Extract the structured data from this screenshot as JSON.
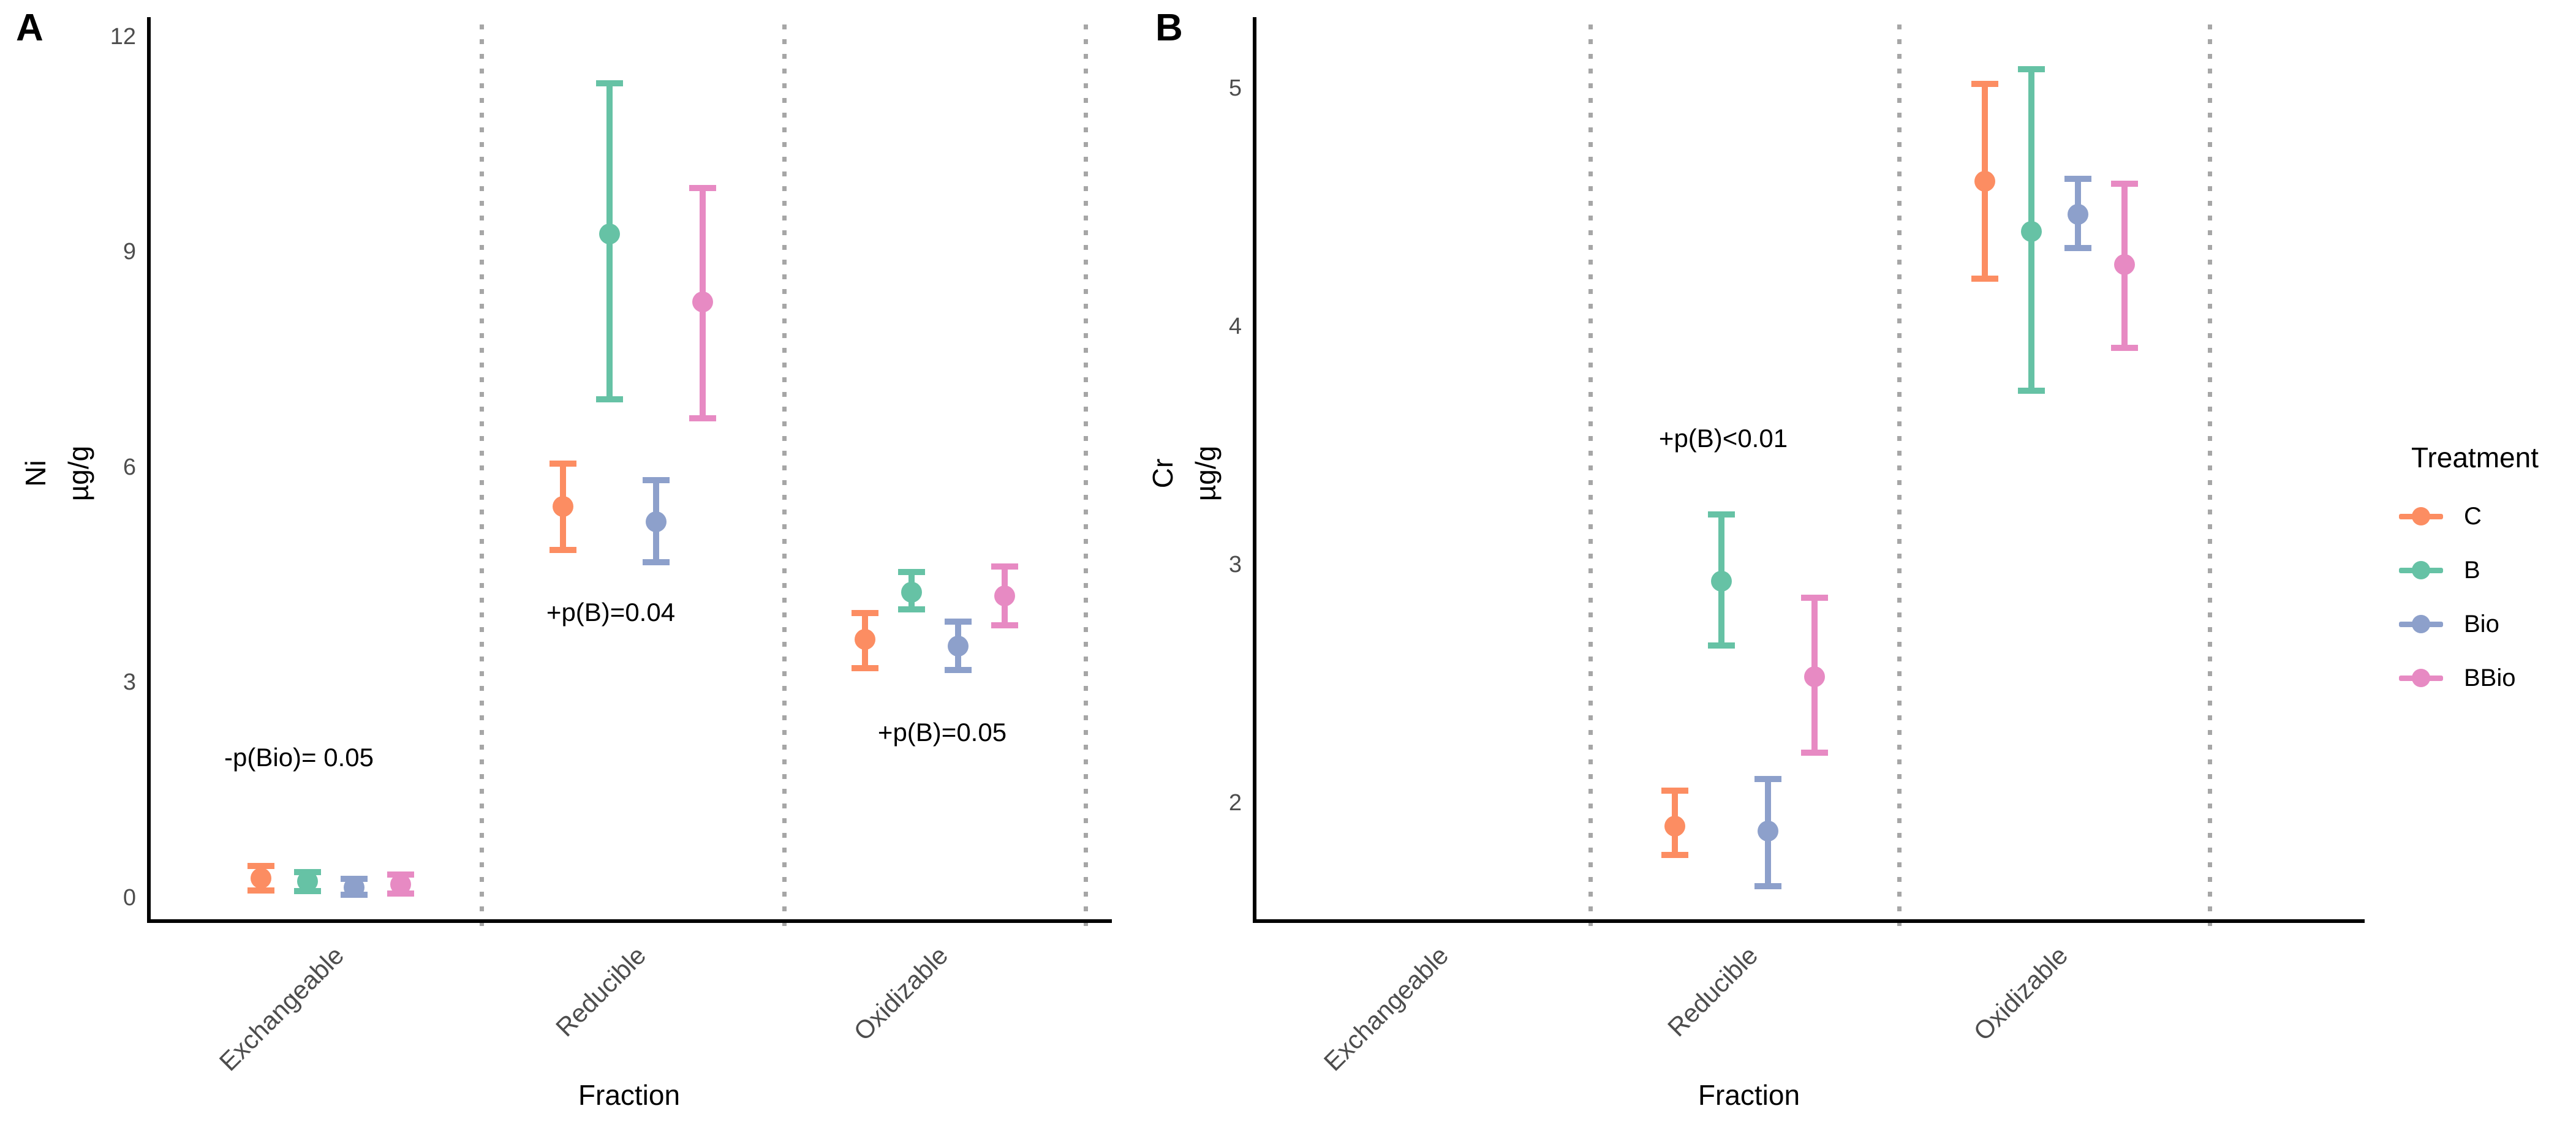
{
  "chart_data": [
    {
      "panel_label": "A",
      "type": "pointrange",
      "ylabel": "Ni",
      "ylabel_unit": "µg/g",
      "xlabel": "Fraction",
      "categories": [
        "Exchangeable",
        "Reducible",
        "Oxidizable"
      ],
      "yticks": [
        0,
        3,
        6,
        9,
        12
      ],
      "ylim": [
        -0.3,
        12.34
      ],
      "grid": "dotted-vertical-separators",
      "legend_position": "right-of-figure",
      "series": [
        {
          "name": "C",
          "color": "#FC8D62",
          "points": [
            {
              "category": "Exchangeable",
              "mean": 0.27,
              "lower": 0.1,
              "upper": 0.44
            },
            {
              "category": "Reducible",
              "mean": 5.45,
              "lower": 4.85,
              "upper": 6.05
            },
            {
              "category": "Oxidizable",
              "mean": 3.6,
              "lower": 3.2,
              "upper": 3.97
            }
          ]
        },
        {
          "name": "B",
          "color": "#66C2A5",
          "points": [
            {
              "category": "Exchangeable",
              "mean": 0.23,
              "lower": 0.09,
              "upper": 0.36
            },
            {
              "category": "Reducible",
              "mean": 9.25,
              "lower": 6.95,
              "upper": 11.35
            },
            {
              "category": "Oxidizable",
              "mean": 4.26,
              "lower": 4.02,
              "upper": 4.54
            }
          ]
        },
        {
          "name": "Bio",
          "color": "#8DA0CB",
          "points": [
            {
              "category": "Exchangeable",
              "mean": 0.14,
              "lower": 0.04,
              "upper": 0.26
            },
            {
              "category": "Reducible",
              "mean": 5.24,
              "lower": 4.68,
              "upper": 5.82
            },
            {
              "category": "Oxidizable",
              "mean": 3.51,
              "lower": 3.17,
              "upper": 3.85
            }
          ]
        },
        {
          "name": "BBio",
          "color": "#E78AC3",
          "points": [
            {
              "category": "Exchangeable",
              "mean": 0.19,
              "lower": 0.06,
              "upper": 0.32
            },
            {
              "category": "Reducible",
              "mean": 8.3,
              "lower": 6.68,
              "upper": 9.89
            },
            {
              "category": "Oxidizable",
              "mean": 4.21,
              "lower": 3.8,
              "upper": 4.62
            }
          ]
        }
      ],
      "annotations": [
        {
          "text": "-p(Bio)= 0.05",
          "category_index": 0,
          "dx": -52,
          "y": 1.95
        },
        {
          "text": "+p(B)=0.04",
          "category_index": 1,
          "dx": -36,
          "y": 3.98
        },
        {
          "text": "+p(B)=0.05",
          "category_index": 2,
          "dx": 12,
          "y": 2.3
        }
      ]
    },
    {
      "panel_label": "B",
      "type": "pointrange",
      "ylabel": "Cr",
      "ylabel_unit": "µg/g",
      "xlabel": "Fraction",
      "categories": [
        "Exchangeable",
        "Reducible",
        "Oxidizable"
      ],
      "yticks": [
        2,
        3,
        4,
        5
      ],
      "ylim": [
        1.51,
        5.32
      ],
      "grid": "dotted-vertical-separators",
      "legend_position": "right-of-figure",
      "series": [
        {
          "name": "C",
          "color": "#FC8D62",
          "points": [
            {
              "category": "Reducible",
              "mean": 1.9,
              "lower": 1.78,
              "upper": 2.05
            },
            {
              "category": "Oxidizable",
              "mean": 4.61,
              "lower": 4.2,
              "upper": 5.02
            }
          ]
        },
        {
          "name": "B",
          "color": "#66C2A5",
          "points": [
            {
              "category": "Reducible",
              "mean": 2.93,
              "lower": 2.66,
              "upper": 3.21
            },
            {
              "category": "Oxidizable",
              "mean": 4.4,
              "lower": 3.73,
              "upper": 5.08
            }
          ]
        },
        {
          "name": "Bio",
          "color": "#8DA0CB",
          "points": [
            {
              "category": "Reducible",
              "mean": 1.88,
              "lower": 1.65,
              "upper": 2.1
            },
            {
              "category": "Oxidizable",
              "mean": 4.47,
              "lower": 4.33,
              "upper": 4.62
            }
          ]
        },
        {
          "name": "BBio",
          "color": "#E78AC3",
          "points": [
            {
              "category": "Reducible",
              "mean": 2.53,
              "lower": 2.21,
              "upper": 2.86
            },
            {
              "category": "Oxidizable",
              "mean": 4.26,
              "lower": 3.91,
              "upper": 4.6
            }
          ]
        }
      ],
      "annotations": [
        {
          "text": "+p(B)<0.01",
          "category_index": 1,
          "dx": -35,
          "y": 3.53
        }
      ]
    }
  ],
  "legend": {
    "title": "Treatment",
    "items": [
      {
        "label": "C",
        "color": "#FC8D62"
      },
      {
        "label": "B",
        "color": "#66C2A5"
      },
      {
        "label": "Bio",
        "color": "#8DA0CB"
      },
      {
        "label": "BBio",
        "color": "#E78AC3"
      }
    ]
  },
  "colors": {
    "axis": "#000000",
    "tick_label": "#4D4D4D",
    "separator_dash": "#A6A6A6",
    "background": "#FFFFFF"
  }
}
